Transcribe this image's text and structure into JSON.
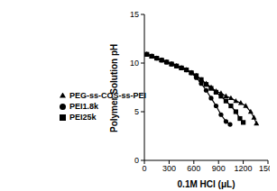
{
  "chart_data": {
    "type": "line",
    "x_label": "0.1M HCl (μL)",
    "y_label": "Polymer Solution pH",
    "xlim": [
      0,
      1500
    ],
    "xticks": [
      0,
      300,
      600,
      900,
      1200,
      1500
    ],
    "ylim": [
      0,
      15
    ],
    "yticks": [
      0,
      5,
      10,
      15
    ],
    "grid": false,
    "legend": "left",
    "series": [
      {
        "name": "PEI1.8k",
        "color": "#000000",
        "marker": "circle",
        "line_style": "solid",
        "x": [
          30,
          90,
          150,
          210,
          270,
          330,
          390,
          450,
          510,
          570,
          630,
          690,
          750,
          810,
          870,
          930,
          990,
          1040
        ],
        "values": [
          10.9,
          10.7,
          10.5,
          10.3,
          10.1,
          9.9,
          9.7,
          9.5,
          9.3,
          9.0,
          8.5,
          7.9,
          7.2,
          6.4,
          5.6,
          4.7,
          4.0,
          3.7
        ]
      },
      {
        "name": "PEI25k",
        "color": "#000000",
        "marker": "square",
        "line_style": "solid",
        "x": [
          30,
          90,
          150,
          210,
          270,
          330,
          390,
          450,
          510,
          570,
          630,
          690,
          750,
          810,
          870,
          930,
          990,
          1050,
          1110,
          1160,
          1200
        ],
        "values": [
          10.9,
          10.7,
          10.5,
          10.3,
          10.1,
          9.9,
          9.7,
          9.5,
          9.3,
          9.0,
          8.7,
          8.3,
          7.8,
          7.4,
          7.0,
          6.6,
          6.1,
          5.6,
          5.0,
          4.3,
          3.9
        ]
      },
      {
        "name": "PEG-ss-COS-ss-PEI",
        "color": "#000000",
        "marker": "triangle",
        "line_style": "solid",
        "x": [
          30,
          90,
          150,
          210,
          270,
          330,
          390,
          450,
          510,
          570,
          630,
          690,
          750,
          810,
          870,
          930,
          990,
          1050,
          1110,
          1170,
          1230,
          1290,
          1330,
          1360
        ],
        "values": [
          10.9,
          10.7,
          10.5,
          10.3,
          10.1,
          9.9,
          9.7,
          9.5,
          9.3,
          9.0,
          8.7,
          8.3,
          7.9,
          7.5,
          7.1,
          6.9,
          6.6,
          6.4,
          6.1,
          5.9,
          5.6,
          5.0,
          4.4,
          3.8
        ]
      }
    ]
  }
}
